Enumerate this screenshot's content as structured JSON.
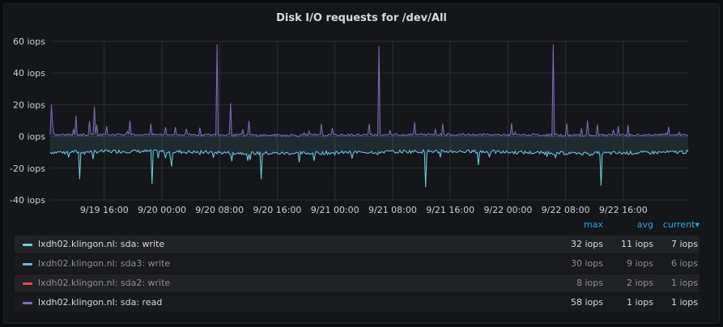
{
  "panel": {
    "title": "Disk I/O requests for /dev/All"
  },
  "legend": {
    "headers": {
      "max": "max",
      "avg": "avg",
      "current": "current▾"
    },
    "rows": [
      {
        "name": "lxdh02.klingon.nl: sda: write",
        "max": "32 iops",
        "avg": "11 iops",
        "current": "7 iops",
        "color": "#6ed0e0",
        "dim": false
      },
      {
        "name": "lxdh02.klingon.nl: sda3: write",
        "max": "30 iops",
        "avg": "9 iops",
        "current": "6 iops",
        "color": "#70b6e0",
        "dim": true
      },
      {
        "name": "lxdh02.klingon.nl: sda2: write",
        "max": "8 iops",
        "avg": "2 iops",
        "current": "1 iops",
        "color": "#e24d42",
        "dim": true
      },
      {
        "name": "lxdh02.klingon.nl: sda: read",
        "max": "58 iops",
        "avg": "1 iops",
        "current": "1 iops",
        "color": "#806eb7",
        "dim": false
      }
    ]
  },
  "chart_data": {
    "type": "line",
    "title": "Disk I/O requests for /dev/All",
    "ylim": [
      -40,
      60
    ],
    "ytick_labels": [
      "60 iops",
      "40 iops",
      "20 iops",
      "0 iops",
      "-20 iops",
      "-40 iops"
    ],
    "ytick_values": [
      60,
      40,
      20,
      0,
      -20,
      -40
    ],
    "x_range": [
      "9/19 08:30",
      "9/23 01:00"
    ],
    "xtick_labels": [
      "9/19 16:00",
      "9/20 00:00",
      "9/20 08:00",
      "9/20 16:00",
      "9/21 00:00",
      "9/21 08:00",
      "9/21 16:00",
      "9/22 00:00",
      "9/22 08:00",
      "9/22 16:00"
    ],
    "grid": true,
    "series": [
      {
        "name": "lxdh02.klingon.nl: sda: read",
        "color": "#806eb7",
        "baseline": 1,
        "spikes": [
          [
            "9/19 08:40",
            20
          ],
          [
            "9/19 12:00",
            13
          ],
          [
            "9/19 14:40",
            19
          ],
          [
            "9/19 19:30",
            10
          ],
          [
            "9/20 07:40",
            58
          ],
          [
            "9/20 09:30",
            21
          ],
          [
            "9/20 12:00",
            10
          ],
          [
            "9/21 06:10",
            57
          ],
          [
            "9/21 11:00",
            9
          ],
          [
            "9/21 15:00",
            8
          ],
          [
            "9/22 06:20",
            58
          ],
          [
            "9/22 11:00",
            10
          ]
        ]
      },
      {
        "name": "lxdh02.klingon.nl: sda: write",
        "color": "#6ed0e0",
        "baseline": -10,
        "dips": [
          [
            "9/19 12:30",
            -27
          ],
          [
            "9/19 22:40",
            -30
          ],
          [
            "9/20 01:20",
            -19
          ],
          [
            "9/20 13:50",
            -27
          ],
          [
            "9/21 12:30",
            -32
          ],
          [
            "9/21 19:50",
            -18
          ],
          [
            "9/22 13:00",
            -31
          ]
        ]
      },
      {
        "name": "lxdh02.klingon.nl: sda3: write",
        "color": "#70b6e0",
        "baseline": -9
      },
      {
        "name": "lxdh02.klingon.nl: sda2: write",
        "color": "#e24d42",
        "baseline": -2
      }
    ]
  }
}
